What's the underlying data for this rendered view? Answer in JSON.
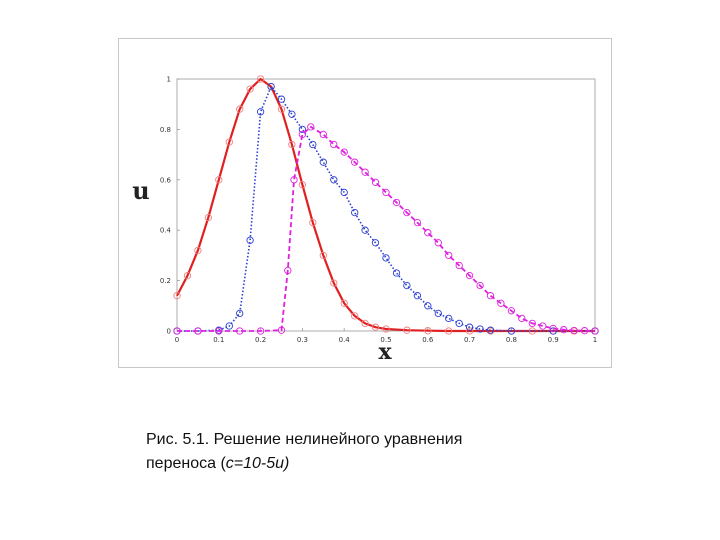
{
  "chart_data": {
    "type": "line",
    "title": "",
    "xlabel": "x",
    "ylabel": "u",
    "xlim": [
      0,
      1
    ],
    "ylim": [
      0,
      1
    ],
    "xticks": [
      "0",
      "0.1",
      "0.2",
      "0.3",
      "0.4",
      "0.5",
      "0.6",
      "0.7",
      "0.8",
      "0.9",
      "1"
    ],
    "yticks": [
      "0",
      "0.2",
      "0.4",
      "0.6",
      "0.8",
      "1"
    ],
    "grid": false,
    "legend": "none",
    "series": [
      {
        "color": "#e02020",
        "line": "solid",
        "marker_color": "#f08080",
        "x": [
          0,
          0.025,
          0.05,
          0.075,
          0.1,
          0.125,
          0.15,
          0.175,
          0.2,
          0.225,
          0.25,
          0.275,
          0.3,
          0.325,
          0.35,
          0.375,
          0.4,
          0.425,
          0.45,
          0.475,
          0.5,
          0.55,
          0.6,
          0.65,
          0.7,
          0.75,
          0.8,
          0.85,
          0.9,
          0.95,
          1
        ],
        "y": [
          0.14,
          0.22,
          0.32,
          0.45,
          0.6,
          0.75,
          0.88,
          0.96,
          1.0,
          0.97,
          0.88,
          0.74,
          0.58,
          0.43,
          0.3,
          0.19,
          0.11,
          0.06,
          0.03,
          0.015,
          0.008,
          0.003,
          0.001,
          0,
          0,
          0,
          0,
          0,
          0,
          0,
          0
        ]
      },
      {
        "color": "#2a3fd0",
        "line": "dotted",
        "marker_color": "#2a3fd0",
        "x": [
          0,
          0.05,
          0.1,
          0.125,
          0.15,
          0.175,
          0.2,
          0.225,
          0.25,
          0.275,
          0.3,
          0.325,
          0.35,
          0.375,
          0.4,
          0.425,
          0.45,
          0.475,
          0.5,
          0.525,
          0.55,
          0.575,
          0.6,
          0.625,
          0.65,
          0.675,
          0.7,
          0.725,
          0.75,
          0.8,
          0.9,
          1
        ],
        "y": [
          0,
          0,
          0.003,
          0.02,
          0.07,
          0.36,
          0.87,
          0.97,
          0.92,
          0.86,
          0.8,
          0.74,
          0.67,
          0.6,
          0.55,
          0.47,
          0.4,
          0.35,
          0.29,
          0.23,
          0.18,
          0.14,
          0.1,
          0.07,
          0.05,
          0.03,
          0.015,
          0.008,
          0.003,
          0,
          0,
          0
        ]
      },
      {
        "color": "#e020e0",
        "line": "dashed",
        "marker_color": "#e020e0",
        "x": [
          0,
          0.05,
          0.1,
          0.15,
          0.2,
          0.25,
          0.265,
          0.28,
          0.3,
          0.32,
          0.35,
          0.375,
          0.4,
          0.425,
          0.45,
          0.475,
          0.5,
          0.525,
          0.55,
          0.575,
          0.6,
          0.625,
          0.65,
          0.675,
          0.7,
          0.725,
          0.75,
          0.775,
          0.8,
          0.825,
          0.85,
          0.875,
          0.9,
          0.925,
          0.95,
          0.975,
          1
        ],
        "y": [
          0,
          0,
          0,
          0,
          0,
          0.003,
          0.24,
          0.6,
          0.78,
          0.81,
          0.78,
          0.74,
          0.71,
          0.67,
          0.63,
          0.59,
          0.55,
          0.51,
          0.47,
          0.43,
          0.39,
          0.35,
          0.3,
          0.26,
          0.22,
          0.18,
          0.14,
          0.11,
          0.08,
          0.05,
          0.03,
          0.02,
          0.01,
          0.005,
          0.002,
          0.001,
          0
        ]
      }
    ]
  },
  "caption": {
    "line1": "Рис. 5.1. Решение нелинейного уравнения",
    "line2_prefix": "переноса (",
    "line2_formula": "c=10-5u)",
    "line2_suffix": ""
  }
}
